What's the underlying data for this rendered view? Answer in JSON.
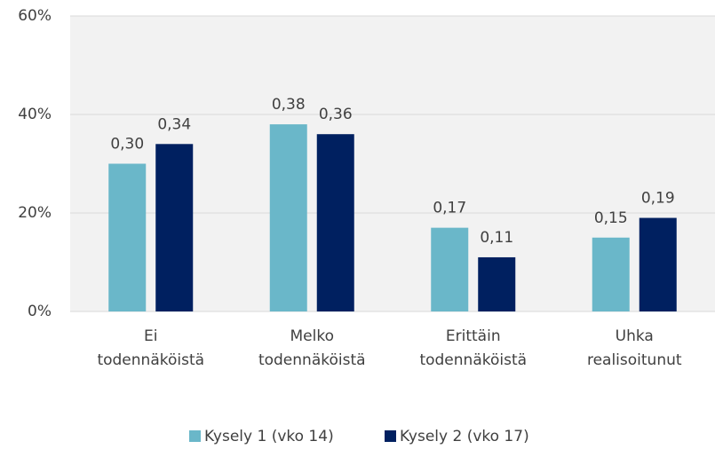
{
  "chart_data": {
    "type": "bar",
    "categories": [
      "Ei\ntodennäköistä",
      "Melko\ntodennäköistä",
      "Erittäin\ntodennäköistä",
      "Uhka\nrealisoitunut"
    ],
    "series": [
      {
        "name": "Kysely 1 (vko 14)",
        "color": "#6ab7c9",
        "values": [
          30,
          38,
          17,
          15
        ],
        "value_labels": [
          "0,30",
          "0,38",
          "0,17",
          "0,15"
        ]
      },
      {
        "name": "Kysely 2 (vko 17)",
        "color": "#002060",
        "values": [
          34,
          36,
          11,
          19
        ],
        "value_labels": [
          "0,34",
          "0,36",
          "0,11",
          "0,19"
        ]
      }
    ],
    "ylim": [
      0,
      60
    ],
    "yticks": [
      {
        "value": 0,
        "label": "0%"
      },
      {
        "value": 20,
        "label": "20%"
      },
      {
        "value": 40,
        "label": "40%"
      },
      {
        "value": 60,
        "label": "60%"
      }
    ],
    "grid": true,
    "legend": "bottom",
    "background": "#f2f2f2"
  }
}
